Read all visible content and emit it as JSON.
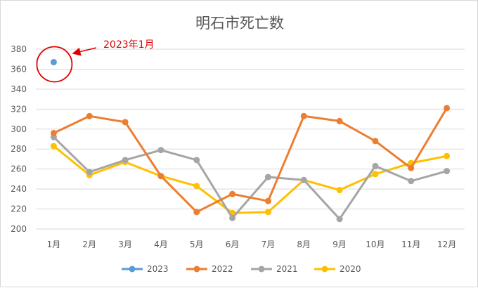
{
  "chart_data": {
    "type": "line",
    "title": "明石市死亡数",
    "xlabel": "",
    "ylabel": "",
    "categories": [
      "1月",
      "2月",
      "3月",
      "4月",
      "5月",
      "6月",
      "7月",
      "8月",
      "9月",
      "10月",
      "11月",
      "12月"
    ],
    "ylim": [
      200,
      380
    ],
    "yticks": [
      200,
      220,
      240,
      260,
      280,
      300,
      320,
      340,
      360,
      380
    ],
    "grid": "horizontal",
    "legend_position": "bottom",
    "series": [
      {
        "name": "2023",
        "color": "#5b9bd5",
        "values": [
          367,
          null,
          null,
          null,
          null,
          null,
          null,
          null,
          null,
          null,
          null,
          null
        ]
      },
      {
        "name": "2022",
        "color": "#ed7d31",
        "values": [
          296,
          313,
          307,
          253,
          217,
          235,
          228,
          313,
          308,
          288,
          261,
          321
        ]
      },
      {
        "name": "2021",
        "color": "#a5a5a5",
        "values": [
          292,
          257,
          269,
          279,
          269,
          211,
          252,
          249,
          210,
          263,
          248,
          258
        ]
      },
      {
        "name": "2020",
        "color": "#ffc000",
        "values": [
          283,
          254,
          267,
          253,
          243,
          216,
          217,
          249,
          239,
          255,
          266,
          273
        ]
      }
    ],
    "annotation": {
      "text": "2023年1月",
      "color": "#e00000",
      "target_series": "2023",
      "target_category": "1月"
    }
  }
}
